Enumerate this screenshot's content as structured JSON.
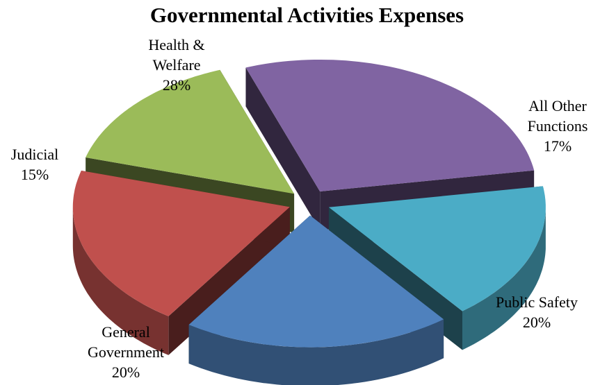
{
  "chart_data": {
    "type": "pie",
    "title": "Governmental Activities Expenses",
    "slices": [
      {
        "label_lines": [
          "Health &",
          "Welfare"
        ],
        "percent_label": "28%",
        "value": 28,
        "color": "#8064A2"
      },
      {
        "label_lines": [
          "All Other",
          "Functions"
        ],
        "percent_label": "17%",
        "value": 17,
        "color": "#4BACC6"
      },
      {
        "label_lines": [
          "Public Safety"
        ],
        "percent_label": "20%",
        "value": 20,
        "color": "#4F81BD"
      },
      {
        "label_lines": [
          "General",
          "Government"
        ],
        "percent_label": "20%",
        "value": 20,
        "color": "#C0504D"
      },
      {
        "label_lines": [
          "Judicial"
        ],
        "percent_label": "15%",
        "value": 15,
        "color": "#9BBB59"
      }
    ]
  }
}
